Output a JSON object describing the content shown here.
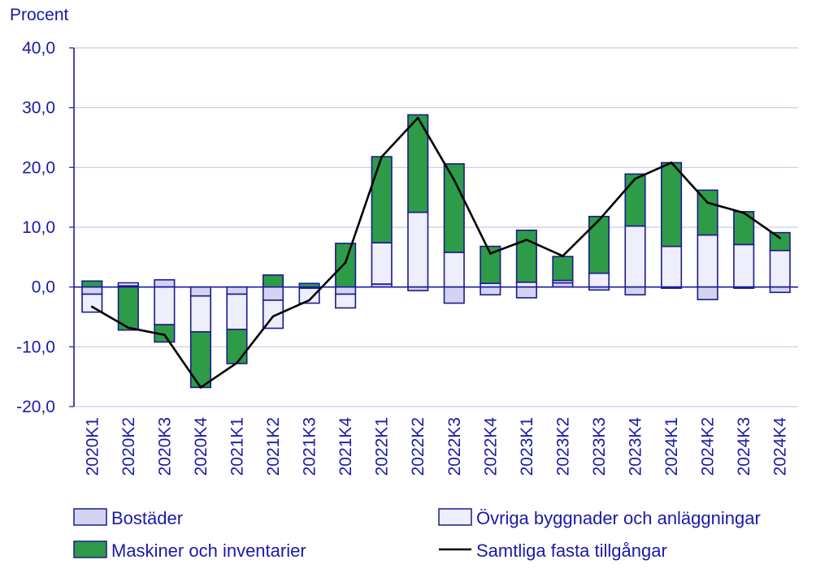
{
  "chart_data": {
    "type": "bar",
    "stacked": true,
    "unit_label": "Procent",
    "categories": [
      "2020K1",
      "2020K2",
      "2020K3",
      "2020K4",
      "2021K1",
      "2021K2",
      "2021K3",
      "2021K4",
      "2022K1",
      "2022K2",
      "2022K3",
      "2022K4",
      "2023K1",
      "2023K2",
      "2023K3",
      "2023K4",
      "2024K1",
      "2024K2",
      "2024K3",
      "2024K4"
    ],
    "ylim": [
      -20,
      40
    ],
    "yticks": [
      {
        "value": -20,
        "label": "-20,0"
      },
      {
        "value": -10,
        "label": "-10,0"
      },
      {
        "value": 0,
        "label": "0,0"
      },
      {
        "value": 10,
        "label": "10,0"
      },
      {
        "value": 20,
        "label": "20,0"
      },
      {
        "value": 30,
        "label": "30,0"
      },
      {
        "value": 40,
        "label": "40,0"
      }
    ],
    "grid": true,
    "legend_position": "bottom",
    "series": [
      {
        "name": "Bostäder",
        "kind": "bar",
        "color": "#d4d4f2",
        "values": [
          -1.2,
          0.2,
          1.2,
          -1.5,
          -1.2,
          -2.2,
          -0.2,
          -1.2,
          0.5,
          -0.6,
          -2.7,
          -1.3,
          -1.8,
          0.7,
          -0.5,
          -1.3,
          -0.2,
          -2.1,
          -0.2,
          -0.9
        ]
      },
      {
        "name": "Övriga byggnader och anläggningar",
        "kind": "bar",
        "color": "#eeeefc",
        "values": [
          -3.0,
          0.5,
          -6.3,
          -6.0,
          -5.9,
          -4.7,
          -2.5,
          -2.3,
          6.9,
          12.5,
          5.8,
          0.6,
          0.8,
          0.4,
          2.3,
          10.2,
          6.8,
          8.7,
          7.1,
          6.1
        ]
      },
      {
        "name": "Maskiner och inventarier",
        "kind": "bar",
        "color": "#2e9b48",
        "values": [
          1.0,
          -7.2,
          -2.9,
          -9.3,
          -5.7,
          2.0,
          0.6,
          7.3,
          14.4,
          16.3,
          14.8,
          6.2,
          8.7,
          4.0,
          9.5,
          8.7,
          14.0,
          7.5,
          5.5,
          3.0
        ]
      },
      {
        "name": "Samtliga fasta tillgångar",
        "kind": "line",
        "color": "#000000",
        "values": [
          -3.3,
          -6.8,
          -8.0,
          -16.8,
          -12.7,
          -4.9,
          -2.2,
          4.1,
          21.8,
          28.3,
          17.9,
          5.6,
          7.9,
          5.2,
          11.2,
          18.1,
          20.8,
          14.1,
          12.4,
          8.2
        ]
      }
    ]
  }
}
